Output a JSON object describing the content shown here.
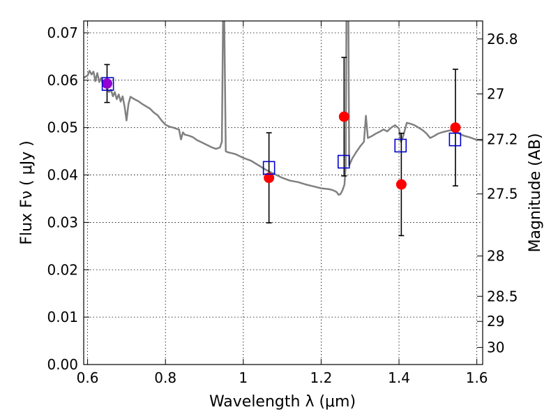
{
  "chart_data": {
    "type": "scatter",
    "xlabel": "Wavelength  λ (μm)",
    "ylabel": "Flux  Fν  ( μJy )",
    "ylabel_right": "Magnitude (AB)",
    "xlim": [
      0.59,
      1.615
    ],
    "ylim": [
      0.0,
      0.0725
    ],
    "grid": true,
    "x_ticks": [
      0.6,
      0.8,
      1.0,
      1.2,
      1.4,
      1.6
    ],
    "x_tick_labels": [
      "0.6",
      "0.8",
      "1",
      "1.2",
      "1.4",
      "1.6"
    ],
    "y_ticks": [
      0.0,
      0.01,
      0.02,
      0.03,
      0.04,
      0.05,
      0.06,
      0.07
    ],
    "y_tick_labels": [
      "0.00",
      "0.01",
      "0.02",
      "0.03",
      "0.04",
      "0.05",
      "0.06",
      "0.07"
    ],
    "right_ticks": [
      {
        "label": "26.8",
        "flux": 0.0687
      },
      {
        "label": "27",
        "flux": 0.0571
      },
      {
        "label": "27.2",
        "flux": 0.0475
      },
      {
        "label": "27.5",
        "flux": 0.036
      },
      {
        "label": "28",
        "flux": 0.0229
      },
      {
        "label": "28.5",
        "flux": 0.0144
      },
      {
        "label": "29",
        "flux": 0.0091
      },
      {
        "label": "30",
        "flux": 0.0036
      }
    ],
    "series": [
      {
        "kind": "spectrum",
        "color": "#808080",
        "points": [
          [
            0.59,
            0.0605
          ],
          [
            0.6,
            0.061
          ],
          [
            0.605,
            0.062
          ],
          [
            0.61,
            0.0612
          ],
          [
            0.615,
            0.0618
          ],
          [
            0.62,
            0.0598
          ],
          [
            0.625,
            0.0615
          ],
          [
            0.63,
            0.0596
          ],
          [
            0.635,
            0.0605
          ],
          [
            0.64,
            0.0588
          ],
          [
            0.645,
            0.06
          ],
          [
            0.65,
            0.0582
          ],
          [
            0.655,
            0.0575
          ],
          [
            0.66,
            0.058
          ],
          [
            0.665,
            0.0566
          ],
          [
            0.67,
            0.0575
          ],
          [
            0.675,
            0.056
          ],
          [
            0.68,
            0.057
          ],
          [
            0.685,
            0.0555
          ],
          [
            0.69,
            0.0566
          ],
          [
            0.695,
            0.0545
          ],
          [
            0.7,
            0.0515
          ],
          [
            0.705,
            0.055
          ],
          [
            0.71,
            0.0565
          ],
          [
            0.72,
            0.056
          ],
          [
            0.73,
            0.0556
          ],
          [
            0.74,
            0.055
          ],
          [
            0.75,
            0.0545
          ],
          [
            0.76,
            0.054
          ],
          [
            0.77,
            0.0532
          ],
          [
            0.78,
            0.0526
          ],
          [
            0.79,
            0.0515
          ],
          [
            0.8,
            0.0506
          ],
          [
            0.81,
            0.0502
          ],
          [
            0.82,
            0.05
          ],
          [
            0.83,
            0.0497
          ],
          [
            0.835,
            0.0496
          ],
          [
            0.84,
            0.0475
          ],
          [
            0.845,
            0.049
          ],
          [
            0.85,
            0.0485
          ],
          [
            0.86,
            0.0483
          ],
          [
            0.87,
            0.048
          ],
          [
            0.88,
            0.0474
          ],
          [
            0.89,
            0.047
          ],
          [
            0.9,
            0.0466
          ],
          [
            0.91,
            0.0462
          ],
          [
            0.92,
            0.0458
          ],
          [
            0.93,
            0.0455
          ],
          [
            0.94,
            0.0458
          ],
          [
            0.945,
            0.047
          ],
          [
            0.948,
            0.073
          ],
          [
            0.951,
            0.073
          ],
          [
            0.955,
            0.045
          ],
          [
            0.96,
            0.0448
          ],
          [
            0.97,
            0.0446
          ],
          [
            0.98,
            0.0444
          ],
          [
            0.99,
            0.044
          ],
          [
            1.0,
            0.0436
          ],
          [
            1.02,
            0.043
          ],
          [
            1.04,
            0.042
          ],
          [
            1.06,
            0.041
          ],
          [
            1.08,
            0.0402
          ],
          [
            1.1,
            0.0394
          ],
          [
            1.12,
            0.0388
          ],
          [
            1.14,
            0.0385
          ],
          [
            1.16,
            0.038
          ],
          [
            1.18,
            0.0376
          ],
          [
            1.2,
            0.0372
          ],
          [
            1.22,
            0.037
          ],
          [
            1.23,
            0.0368
          ],
          [
            1.24,
            0.0364
          ],
          [
            1.245,
            0.0358
          ],
          [
            1.25,
            0.036
          ],
          [
            1.255,
            0.0368
          ],
          [
            1.26,
            0.038
          ],
          [
            1.263,
            0.042
          ],
          [
            1.265,
            0.073
          ],
          [
            1.27,
            0.073
          ],
          [
            1.272,
            0.042
          ],
          [
            1.28,
            0.0435
          ],
          [
            1.29,
            0.0448
          ],
          [
            1.3,
            0.046
          ],
          [
            1.31,
            0.047
          ],
          [
            1.315,
            0.0525
          ],
          [
            1.32,
            0.0478
          ],
          [
            1.33,
            0.0482
          ],
          [
            1.34,
            0.0487
          ],
          [
            1.35,
            0.0491
          ],
          [
            1.36,
            0.0496
          ],
          [
            1.37,
            0.0492
          ],
          [
            1.38,
            0.05
          ],
          [
            1.39,
            0.0505
          ],
          [
            1.4,
            0.0498
          ],
          [
            1.405,
            0.047
          ],
          [
            1.41,
            0.048
          ],
          [
            1.42,
            0.051
          ],
          [
            1.43,
            0.0508
          ],
          [
            1.44,
            0.0505
          ],
          [
            1.45,
            0.05
          ],
          [
            1.46,
            0.0495
          ],
          [
            1.47,
            0.0488
          ],
          [
            1.48,
            0.0478
          ],
          [
            1.49,
            0.0482
          ],
          [
            1.5,
            0.0487
          ],
          [
            1.51,
            0.049
          ],
          [
            1.52,
            0.0492
          ],
          [
            1.53,
            0.0494
          ],
          [
            1.54,
            0.0494
          ],
          [
            1.55,
            0.049
          ],
          [
            1.56,
            0.0485
          ],
          [
            1.57,
            0.0482
          ],
          [
            1.58,
            0.048
          ],
          [
            1.59,
            0.0477
          ],
          [
            1.6,
            0.0474
          ],
          [
            1.615,
            0.0473
          ]
        ]
      },
      {
        "kind": "observed",
        "marker": "filled-circle",
        "color": "#ff0000",
        "points": [
          {
            "x": 0.65,
            "y": 0.0593,
            "err": 0.004,
            "color": "#9400d3"
          },
          {
            "x": 1.066,
            "y": 0.0394,
            "err": 0.0095
          },
          {
            "x": 1.259,
            "y": 0.0523,
            "err": 0.0125
          },
          {
            "x": 1.406,
            "y": 0.038,
            "err": 0.0108
          },
          {
            "x": 1.545,
            "y": 0.05,
            "err": 0.0123
          }
        ]
      },
      {
        "kind": "model",
        "marker": "open-square",
        "color": "#0000cd",
        "points": [
          {
            "x": 0.652,
            "y": 0.0592
          },
          {
            "x": 1.066,
            "y": 0.0415
          },
          {
            "x": 1.258,
            "y": 0.0428
          },
          {
            "x": 1.404,
            "y": 0.0462
          },
          {
            "x": 1.544,
            "y": 0.0475
          }
        ]
      }
    ]
  }
}
